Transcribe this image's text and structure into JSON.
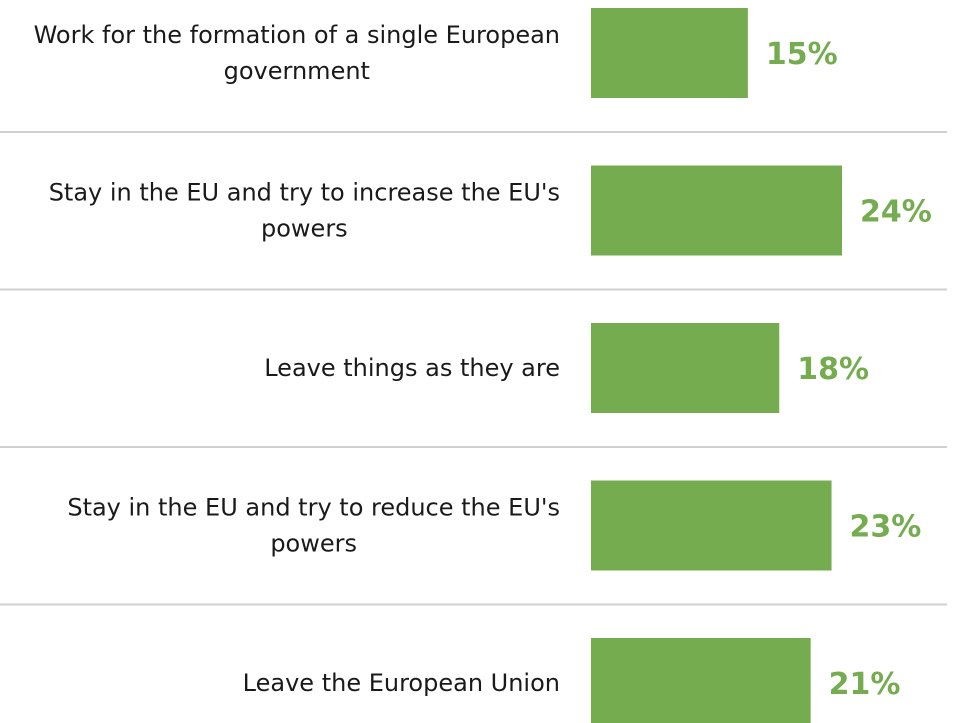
{
  "chart_data": {
    "type": "bar",
    "orientation": "horizontal",
    "categories": [
      "Work for the formation of a single European government",
      "Stay in the EU and try to increase the EU's powers",
      "Leave things as they are",
      "Stay in the EU and try to reduce the EU's powers",
      "Leave the European Union"
    ],
    "values": [
      15,
      24,
      18,
      23,
      21
    ],
    "value_labels": [
      "15%",
      "24%",
      "18%",
      "23%",
      "21%"
    ],
    "xlim": [
      0,
      24
    ],
    "grid": false,
    "colors": {
      "bar": "#75ac4f",
      "value_label": "#75ac4f",
      "separator": "#d0d0d0"
    }
  }
}
